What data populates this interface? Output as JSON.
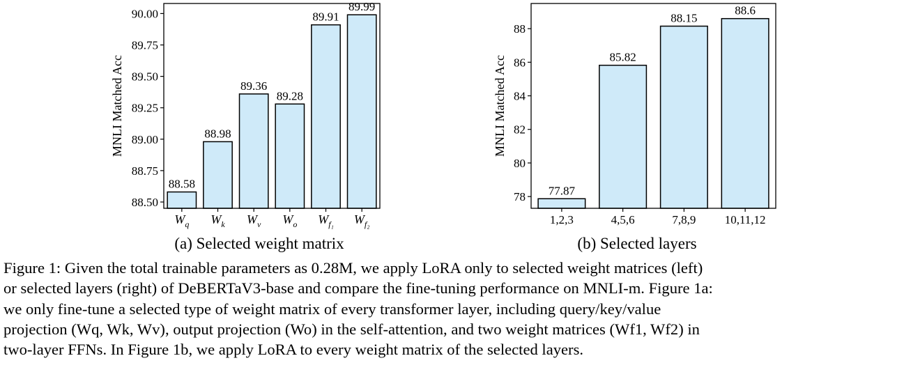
{
  "chart_data": [
    {
      "type": "bar",
      "caption": "(a) Selected weight matrix",
      "ylabel": "MNLI Matched Acc",
      "categories": [
        "W_q",
        "W_k",
        "W_v",
        "W_o",
        "W_f1",
        "W_f2"
      ],
      "category_display": [
        {
          "base": "W",
          "sub": "q"
        },
        {
          "base": "W",
          "sub": "k"
        },
        {
          "base": "W",
          "sub": "v"
        },
        {
          "base": "W",
          "sub": "o"
        },
        {
          "base": "W",
          "sub": "f₁"
        },
        {
          "base": "W",
          "sub": "f₂"
        }
      ],
      "values": [
        88.58,
        88.98,
        89.36,
        89.28,
        89.91,
        89.99
      ],
      "value_labels": [
        "88.58",
        "88.98",
        "89.36",
        "89.28",
        "89.91",
        "89.99"
      ],
      "ylim": [
        88.45,
        90.08
      ],
      "yticks": [
        88.5,
        88.75,
        89.0,
        89.25,
        89.5,
        89.75,
        90.0
      ],
      "ytick_labels": [
        "88.50",
        "88.75",
        "89.00",
        "89.25",
        "89.50",
        "89.75",
        "90.00"
      ],
      "grid": false,
      "bar_color": "#cfeaf9"
    },
    {
      "type": "bar",
      "caption": "(b) Selected layers",
      "ylabel": "MNLI Matched Acc",
      "categories": [
        "1,2,3",
        "4,5,6",
        "7,8,9",
        "10,11,12"
      ],
      "values": [
        77.87,
        85.82,
        88.15,
        88.6
      ],
      "value_labels": [
        "77.87",
        "85.82",
        "88.15",
        "88.6"
      ],
      "ylim": [
        77.3,
        89.5
      ],
      "yticks": [
        78,
        80,
        82,
        84,
        86,
        88
      ],
      "ytick_labels": [
        "78",
        "80",
        "82",
        "84",
        "86",
        "88"
      ],
      "grid": false,
      "bar_color": "#cfeaf9"
    }
  ],
  "caption": {
    "lines": [
      "Figure 1: Given the total trainable parameters as 0.28M, we apply LoRA only to selected weight matrices (left)",
      "or selected layers (right) of DeBERTaV3-base and compare the fine-tuning performance on MNLI-m. Figure 1a:",
      "we only fine-tune a selected type of weight matrix of every transformer layer, including query/key/value",
      "projection (Wq, Wk, Wv), output projection (Wo) in the self-attention, and two weight matrices (Wf1, Wf2) in",
      "two-layer FFNs. In Figure 1b, we apply LoRA to every weight matrix of the selected layers."
    ]
  }
}
